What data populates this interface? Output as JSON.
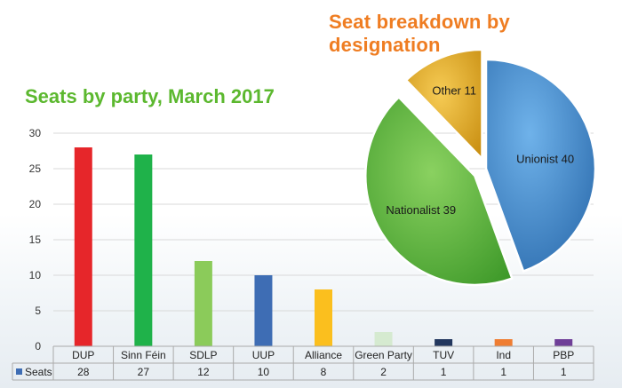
{
  "chart_data": [
    {
      "type": "bar",
      "title": "Seats by party, March 2017",
      "categories": [
        "DUP",
        "Sinn Féin",
        "SDLP",
        "UUP",
        "Alliance",
        "Green Party",
        "TUV",
        "Ind",
        "PBP"
      ],
      "series": [
        {
          "name": "Seats",
          "values": [
            28,
            27,
            12,
            10,
            8,
            2,
            1,
            1,
            1
          ]
        }
      ],
      "colors": [
        "#e6262a",
        "#1fb24a",
        "#8bcb5a",
        "#3e6db4",
        "#fbbf1e",
        "#d5ead0",
        "#22375e",
        "#ef7d32",
        "#6f3f98"
      ],
      "ylim": [
        0,
        30
      ],
      "yticks": [
        0,
        5,
        10,
        15,
        20,
        25,
        30
      ],
      "grid": true,
      "data_table": true
    },
    {
      "type": "pie",
      "title": "Seat breakdown by designation",
      "slices": [
        {
          "label": "Unionist",
          "value": 40,
          "text": "Unionist 40",
          "color": "#3d86c9"
        },
        {
          "label": "Nationalist",
          "value": 39,
          "text": "Nationalist 39",
          "color": "#5ab73f"
        },
        {
          "label": "Other",
          "value": 11,
          "text": "Other 11",
          "color": "#e9b123"
        }
      ]
    }
  ]
}
